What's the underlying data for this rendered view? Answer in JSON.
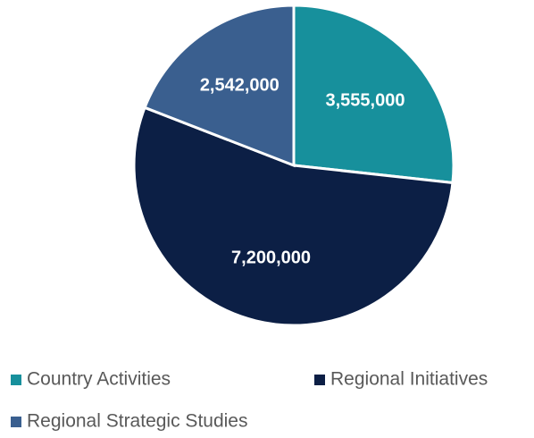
{
  "chart_data": {
    "type": "pie",
    "categories": [
      "Country Activities",
      "Regional Initiatives",
      "Regional Strategic Studies"
    ],
    "values": [
      3555000,
      7200000,
      2542000
    ],
    "value_labels": [
      "3,555,000",
      "7,200,000",
      "2,542,000"
    ],
    "colors": [
      "#17909c",
      "#0c1f45",
      "#3a5f8f"
    ]
  }
}
